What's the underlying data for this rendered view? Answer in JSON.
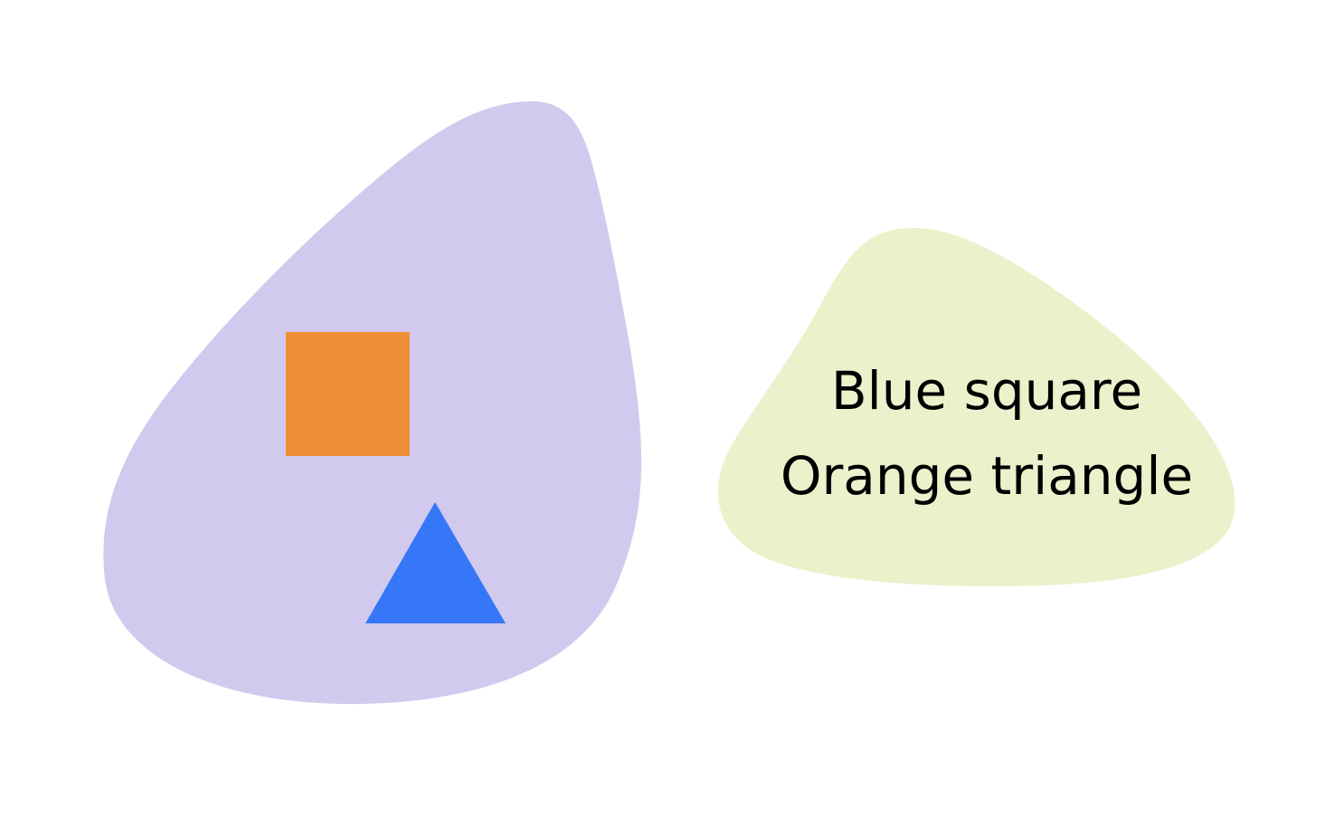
{
  "diagram": {
    "left_blob": {
      "color": "#d1caee",
      "contents": {
        "square": {
          "color": "#ef8f37",
          "shape": "square"
        },
        "triangle": {
          "color": "#3677f7",
          "shape": "triangle"
        }
      }
    },
    "right_blob": {
      "color": "#eaf2cb",
      "lines": [
        "Blue square",
        "Orange triangle"
      ]
    }
  }
}
